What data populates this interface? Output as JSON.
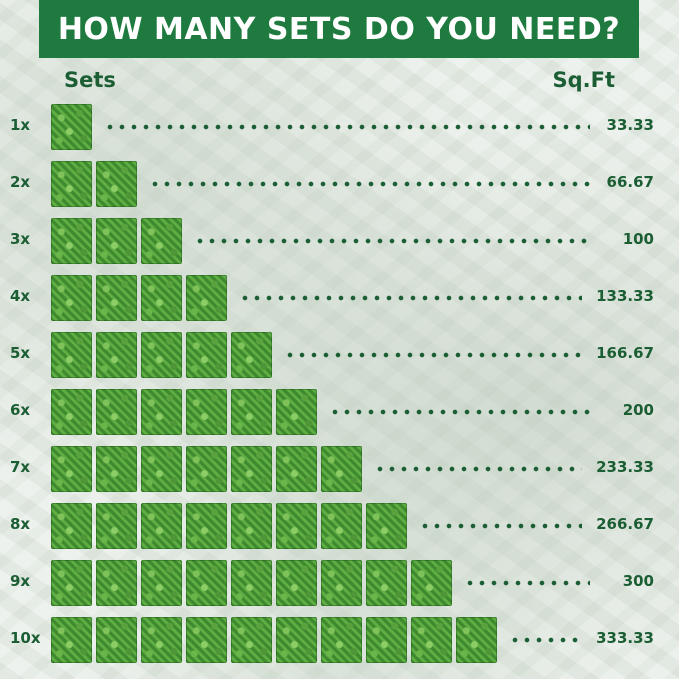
{
  "banner": {
    "title": "HOW MANY SETS DO YOU NEED?"
  },
  "columns": {
    "sets": "Sets",
    "sqft": "Sq.Ft"
  },
  "rows": [
    {
      "label": "1x",
      "sets": 1,
      "value": "33.33"
    },
    {
      "label": "2x",
      "sets": 2,
      "value": "66.67"
    },
    {
      "label": "3x",
      "sets": 3,
      "value": "100"
    },
    {
      "label": "4x",
      "sets": 4,
      "value": "133.33"
    },
    {
      "label": "5x",
      "sets": 5,
      "value": "166.67"
    },
    {
      "label": "6x",
      "sets": 6,
      "value": "200"
    },
    {
      "label": "7x",
      "sets": 7,
      "value": "233.33"
    },
    {
      "label": "8x",
      "sets": 8,
      "value": "266.67"
    },
    {
      "label": "9x",
      "sets": 9,
      "value": "300"
    },
    {
      "label": "10x",
      "sets": 10,
      "value": "333.33"
    }
  ],
  "colors": {
    "banner": "#1e7a3f",
    "text": "#1b5e34",
    "tile": "#4e9a38"
  }
}
